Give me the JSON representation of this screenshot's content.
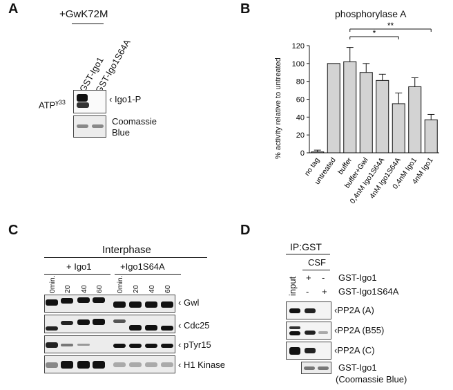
{
  "panels": {
    "A": {
      "letter": "A",
      "header": "+GwK72M",
      "lanes": [
        "GST-Igo1",
        "GST-Igo1S64A"
      ],
      "side_label_base": "ATP",
      "side_label_sup": "γ33",
      "blot_labels": [
        "Igo1-P",
        "Coomassie",
        "Blue"
      ]
    },
    "B": {
      "letter": "B",
      "sig1": "*",
      "sig2": "**"
    },
    "C": {
      "letter": "C",
      "title": "Interphase",
      "groups": [
        "+ Igo1",
        "+Igo1S64A"
      ],
      "timepoints": [
        "0min.",
        "20",
        "40",
        "60",
        "0min.",
        "20",
        "40",
        "60"
      ],
      "blot_labels": [
        "Gwl",
        "Cdc25",
        "pTyr15",
        "H1 Kinase"
      ]
    },
    "D": {
      "letter": "D",
      "title": "IP:GST",
      "csf": "CSF",
      "input_label": "input",
      "rows": [
        {
          "label": "GST-Igo1",
          "marks": [
            "+",
            "-"
          ]
        },
        {
          "label": "GST-Igo1S64A",
          "marks": [
            "-",
            "+"
          ]
        }
      ],
      "blot_labels": [
        "PP2A (A)",
        "PP2A (B55)",
        "PP2A (C)",
        "GST-Igo1",
        "(Coomassie Blue)"
      ]
    }
  },
  "chart_data": {
    "type": "bar",
    "title": "phosphorylase A",
    "ylabel": "% activity relative to untreated",
    "xlabel": "",
    "ylim": [
      0,
      120
    ],
    "yticks": [
      0,
      20,
      40,
      60,
      80,
      100,
      120
    ],
    "categories": [
      "no tag",
      "untreated",
      "buffer",
      "buffer+Gwl",
      "0,4nM Igo1S64A",
      "4nM Igo1S64A",
      "0,4nM Igo1",
      "4nM Igo1"
    ],
    "values": [
      1,
      100,
      102,
      90,
      81,
      55,
      74,
      37
    ],
    "errors": [
      2,
      0,
      16,
      10,
      7,
      12,
      10,
      6
    ],
    "bar_color": "#d3d3d3",
    "significance": [
      {
        "from": "buffer",
        "to": "4nM Igo1S64A",
        "label": "*"
      },
      {
        "from": "buffer",
        "to": "4nM Igo1",
        "label": "**"
      }
    ]
  }
}
